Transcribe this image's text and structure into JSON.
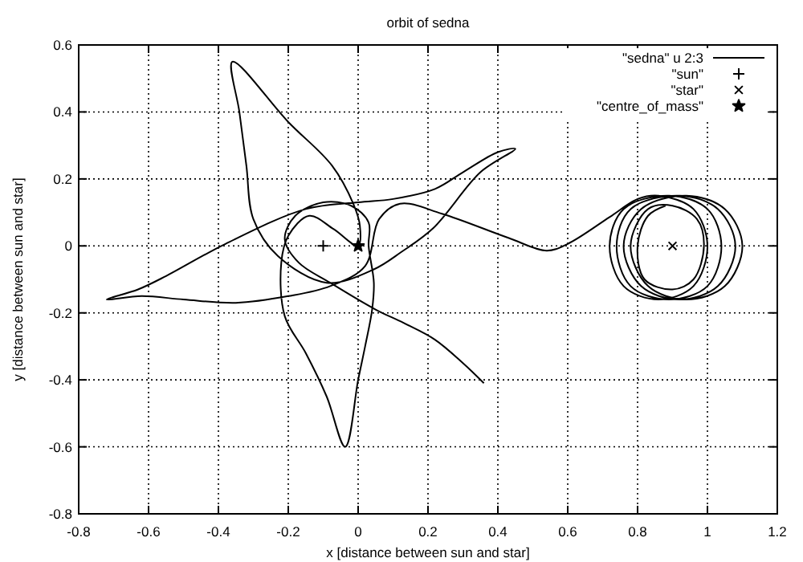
{
  "chart_data": {
    "type": "line",
    "title": "orbit of sedna",
    "xlabel": "x [distance between sun and star]",
    "ylabel": "y [distance between sun and star]",
    "xlim": [
      -0.8,
      1.2
    ],
    "xticks": [
      -0.8,
      -0.6,
      -0.4,
      -0.2,
      0,
      0.2,
      0.4,
      0.6,
      0.8,
      1,
      1.2
    ],
    "ylim": [
      -0.8,
      0.6
    ],
    "yticks": [
      -0.8,
      -0.6,
      -0.4,
      -0.2,
      0,
      0.2,
      0.4,
      0.6
    ],
    "grid": true,
    "legend": "top right",
    "series": [
      {
        "name": "\"sedna\" u 2:3",
        "color": "#000000",
        "line_style": "solid",
        "marker": "none",
        "x": [
          0.36,
          0.3,
          0.22,
          0.13,
          0.05,
          -0.08,
          -0.17,
          -0.21,
          -0.18,
          -0.1,
          -0.02,
          0.03,
          0.03,
          0.045,
          0.04,
          0.02,
          0,
          -0.037,
          -0.09,
          -0.15,
          -0.21,
          -0.22,
          -0.2,
          -0.14,
          -0.07,
          0,
          0.005,
          -0.014,
          -0.075,
          -0.2,
          -0.36,
          -0.34,
          -0.32,
          -0.3,
          -0.23,
          -0.09,
          0.045,
          0.124,
          0.216,
          0.35,
          0.45,
          0.4,
          0.3,
          0.22,
          0.1,
          0,
          -0.15,
          -0.38,
          -0.55,
          -0.63,
          -0.72,
          -0.62,
          -0.5,
          -0.35,
          -0.2,
          -0.08,
          0.02,
          0.06,
          0.12,
          0.24,
          0.43,
          0.54,
          0.6,
          0.72,
          0.8,
          0.86,
          0.96,
          1.0,
          0.96,
          0.86,
          0.76,
          0.72,
          0.76,
          0.89,
          1.0,
          1.04,
          1.0,
          0.89,
          0.78,
          0.74,
          0.78,
          0.92,
          1.03,
          1.08,
          1.03,
          0.92,
          0.81,
          0.76,
          0.81,
          0.94,
          1.05,
          1.1,
          1.05,
          0.94,
          0.83,
          0.78,
          0.83,
          0.9,
          0.97,
          0.99,
          0.96,
          0.9,
          0.82,
          0.8,
          0.83,
          0.88
        ],
        "values": [
          -0.41,
          -0.35,
          -0.28,
          -0.23,
          -0.19,
          -0.11,
          -0.05,
          0.02,
          0.09,
          0.13,
          0.12,
          0.07,
          0,
          -0.11,
          -0.19,
          -0.3,
          -0.4,
          -0.6,
          -0.45,
          -0.32,
          -0.21,
          -0.05,
          0.03,
          0.09,
          0.05,
          0,
          0.06,
          0.126,
          0.24,
          0.37,
          0.55,
          0.4,
          0.24,
          0.08,
          -0.03,
          -0.11,
          -0.07,
          -0.018,
          0.054,
          0.22,
          0.29,
          0.28,
          0.22,
          0.17,
          0.14,
          0.13,
          0.11,
          0.006,
          -0.09,
          -0.13,
          -0.16,
          -0.15,
          -0.16,
          -0.17,
          -0.15,
          -0.12,
          -0.06,
          0.08,
          0.126,
          0.096,
          0.024,
          -0.014,
          0.006,
          0.086,
          0.14,
          0.15,
          0.11,
          0,
          -0.12,
          -0.16,
          -0.12,
          0,
          0.11,
          0.15,
          0.11,
          0,
          -0.12,
          -0.16,
          -0.12,
          0,
          0.11,
          0.15,
          0.11,
          0,
          -0.12,
          -0.16,
          -0.12,
          0,
          0.11,
          0.15,
          0.11,
          0,
          -0.12,
          -0.16,
          -0.12,
          0,
          0.11,
          0.12,
          0.08,
          0,
          -0.1,
          -0.13,
          -0.1,
          0,
          0.09,
          0.12
        ]
      },
      {
        "name": "\"sun\"",
        "type": "scatter",
        "color": "#000000",
        "marker": "cross",
        "x": [
          -0.1
        ],
        "values": [
          0
        ]
      },
      {
        "name": "\"star\"",
        "type": "scatter",
        "color": "#000000",
        "marker": "x",
        "x": [
          0.9
        ],
        "values": [
          0
        ]
      },
      {
        "name": "\"centre_of_mass\"",
        "type": "scatter",
        "color": "#000000",
        "marker": "star",
        "x": [
          0
        ],
        "values": [
          0
        ]
      }
    ]
  }
}
